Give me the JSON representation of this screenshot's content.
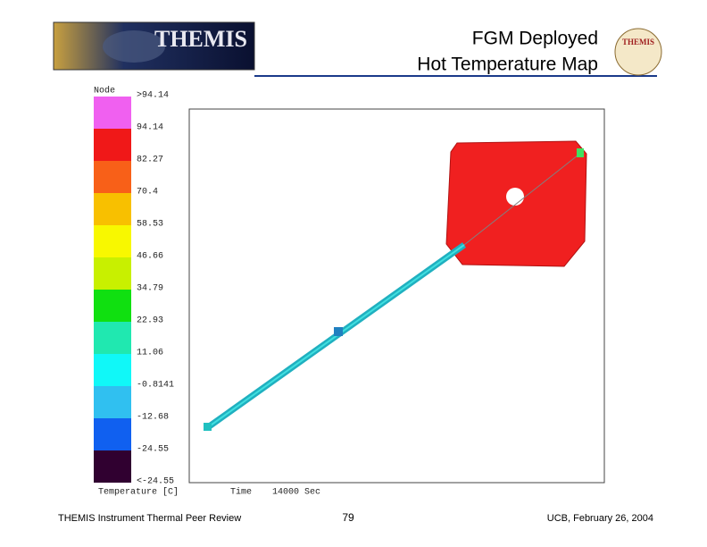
{
  "header": {
    "logo_text": "THEMIS",
    "title_lines": [
      "FGM Deployed",
      "Hot Temperature Map"
    ]
  },
  "legend": {
    "title": "Node",
    "labels": [
      ">94.14",
      "94.14",
      "82.27",
      "70.4",
      "58.53",
      "46.66",
      "34.79",
      "22.93",
      "11.06",
      "-0.8141",
      "-12.68",
      "-24.55",
      "<-24.55"
    ],
    "colors": [
      "#f060f0",
      "#f01818",
      "#f86018",
      "#f8c000",
      "#f8f800",
      "#c8f000",
      "#10e010",
      "#20e8b0",
      "#10f8f8",
      "#30c0f0",
      "#1060f0",
      "#300030"
    ]
  },
  "plot_caption": [
    "Temperature [C]",
    "Time",
    "14000 Sec"
  ],
  "footer": {
    "left": "THEMIS Instrument Thermal Peer Review",
    "page": "79",
    "right": "UCB, February 26, 2004"
  }
}
